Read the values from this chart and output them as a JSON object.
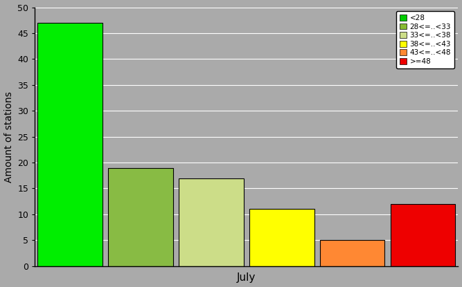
{
  "title": "",
  "xlabel": "July",
  "ylabel": "Amount of stations",
  "ylim": [
    0,
    50
  ],
  "yticks": [
    0,
    5,
    10,
    15,
    20,
    25,
    30,
    35,
    40,
    45,
    50
  ],
  "bar_values": [
    47,
    19,
    17,
    11,
    5,
    12
  ],
  "bar_colors": [
    "#00ee00",
    "#88bb44",
    "#ccdd88",
    "#ffff00",
    "#ff8833",
    "#ee0000"
  ],
  "bar_edge_color": "#000000",
  "legend_labels": [
    "<28",
    "28<=..<33",
    "33<=..<38",
    "38<=..<43",
    "43<=..<48",
    ">=48"
  ],
  "legend_colors": [
    "#00cc00",
    "#88bb33",
    "#ccdd88",
    "#ffff00",
    "#ff8833",
    "#ee0000"
  ],
  "background_color": "#aaaaaa",
  "figsize": [
    6.67,
    4.15
  ],
  "dpi": 100
}
